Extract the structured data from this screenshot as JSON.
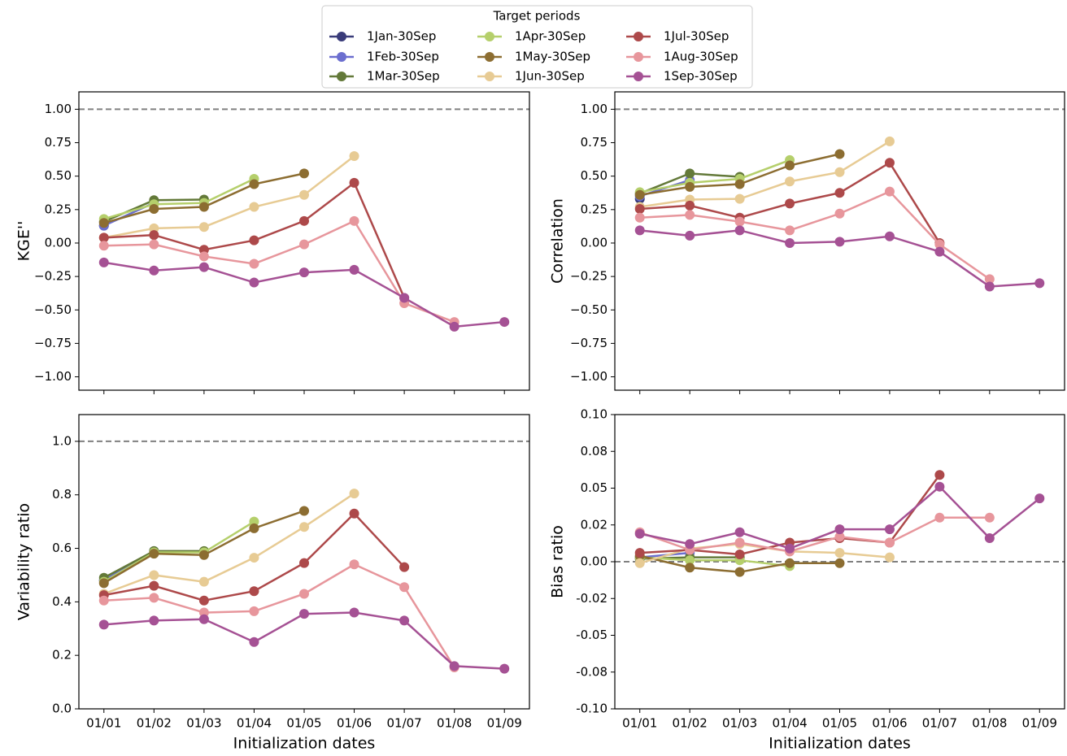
{
  "chart_data": [
    {
      "type": "line",
      "ylabel": "KGE''",
      "legend_title": "Target periods",
      "categories": [
        null,
        null,
        null,
        null,
        null,
        null,
        null,
        null,
        null
      ],
      "ylim": [
        -1.1,
        1.13
      ],
      "reference_line": 1,
      "yticks": [
        {
          "value": 1,
          "label": "1.00"
        },
        {
          "value": 0.75,
          "label": "0.75"
        },
        {
          "value": 0.5,
          "label": "0.50"
        },
        {
          "value": 0.25,
          "label": "0.25"
        },
        {
          "value": 0,
          "label": "0.00"
        },
        {
          "value": -0.25,
          "label": "−0.25"
        },
        {
          "value": -0.5,
          "label": "−0.50"
        },
        {
          "value": -0.75,
          "label": "−0.75"
        },
        {
          "value": -1,
          "label": "−1.00"
        }
      ],
      "series": [
        {
          "name": "1Jan-30Sep",
          "color": "#393b79",
          "values": [
            0.13,
            null,
            null,
            null,
            null,
            null,
            null,
            null,
            null
          ]
        },
        {
          "name": "1Feb-30Sep",
          "color": "#6b6ecf",
          "values": [
            0.13,
            0.3,
            null,
            null,
            null,
            null,
            null,
            null,
            null
          ]
        },
        {
          "name": "1Mar-30Sep",
          "color": "#637939",
          "values": [
            0.16,
            0.32,
            0.325,
            null,
            null,
            null,
            null,
            null,
            null
          ]
        },
        {
          "name": "1Apr-30Sep",
          "color": "#b5cf6b",
          "values": [
            0.18,
            0.29,
            0.3,
            0.48,
            null,
            null,
            null,
            null,
            null
          ]
        },
        {
          "name": "1May-30Sep",
          "color": "#8c6d31",
          "values": [
            0.15,
            0.255,
            0.27,
            0.44,
            0.52,
            null,
            null,
            null,
            null
          ]
        },
        {
          "name": "1Jun-30Sep",
          "color": "#e7cb94",
          "values": [
            0.04,
            0.11,
            0.12,
            0.27,
            0.36,
            0.65,
            null,
            null,
            null
          ]
        },
        {
          "name": "1Jul-30Sep",
          "color": "#ad494a",
          "values": [
            0.04,
            0.06,
            -0.05,
            0.02,
            0.165,
            0.45,
            -0.41,
            null,
            null
          ]
        },
        {
          "name": "1Aug-30Sep",
          "color": "#e7969c",
          "values": [
            -0.02,
            -0.01,
            -0.1,
            -0.155,
            -0.01,
            0.165,
            -0.45,
            -0.59,
            null
          ]
        },
        {
          "name": "1Sep-30Sep",
          "color": "#a55194",
          "values": [
            -0.145,
            -0.205,
            -0.18,
            -0.295,
            -0.22,
            -0.2,
            -0.41,
            -0.625,
            -0.59
          ]
        }
      ]
    },
    {
      "type": "line",
      "ylabel": "Correlation",
      "categories": [
        null,
        null,
        null,
        null,
        null,
        null,
        null,
        null,
        null
      ],
      "ylim": [
        -1.1,
        1.13
      ],
      "reference_line": 1,
      "yticks": [
        {
          "value": 1,
          "label": "1.00"
        },
        {
          "value": 0.75,
          "label": "0.75"
        },
        {
          "value": 0.5,
          "label": "0.50"
        },
        {
          "value": 0.25,
          "label": "0.25"
        },
        {
          "value": 0,
          "label": "0.00"
        },
        {
          "value": -0.25,
          "label": "−0.25"
        },
        {
          "value": -0.5,
          "label": "−0.50"
        },
        {
          "value": -0.75,
          "label": "−0.75"
        },
        {
          "value": -1,
          "label": "−1.00"
        }
      ],
      "series": [
        {
          "values": [
            0.33,
            null,
            null,
            null,
            null,
            null,
            null,
            null,
            null
          ]
        },
        {
          "values": [
            0.35,
            0.47,
            null,
            null,
            null,
            null,
            null,
            null,
            null
          ]
        },
        {
          "values": [
            0.37,
            0.52,
            0.495,
            null,
            null,
            null,
            null,
            null,
            null
          ]
        },
        {
          "values": [
            0.38,
            0.45,
            0.48,
            0.62,
            null,
            null,
            null,
            null,
            null
          ]
        },
        {
          "values": [
            0.36,
            0.42,
            0.44,
            0.58,
            0.665,
            null,
            null,
            null,
            null
          ]
        },
        {
          "values": [
            0.27,
            0.325,
            0.33,
            0.46,
            0.53,
            0.76,
            null,
            null,
            null
          ]
        },
        {
          "values": [
            0.255,
            0.28,
            0.19,
            0.295,
            0.375,
            0.6,
            0.0,
            null,
            null
          ]
        },
        {
          "values": [
            0.19,
            0.21,
            0.16,
            0.095,
            0.22,
            0.385,
            -0.01,
            -0.27,
            null
          ]
        },
        {
          "values": [
            0.095,
            0.055,
            0.095,
            0.0,
            0.01,
            0.05,
            -0.065,
            -0.325,
            -0.3
          ]
        }
      ]
    },
    {
      "type": "line",
      "ylabel": "Variability ratio",
      "xlabel": "Initialization dates",
      "categories": [
        "01/01",
        "01/02",
        "01/03",
        "01/04",
        "01/05",
        "01/06",
        "01/07",
        "01/08",
        "01/09"
      ],
      "ylim": [
        0,
        1.1
      ],
      "reference_line": 1,
      "yticks": [
        {
          "value": 1,
          "label": "1.0"
        },
        {
          "value": 0.8,
          "label": "0.8"
        },
        {
          "value": 0.6,
          "label": "0.6"
        },
        {
          "value": 0.4,
          "label": "0.4"
        },
        {
          "value": 0.2,
          "label": "0.2"
        },
        {
          "value": 0,
          "label": "0.0"
        }
      ],
      "series": [
        {
          "values": [
            0.48,
            null,
            null,
            null,
            null,
            null,
            null,
            null,
            null
          ]
        },
        {
          "values": [
            0.48,
            0.59,
            null,
            null,
            null,
            null,
            null,
            null,
            null
          ]
        },
        {
          "values": [
            0.49,
            0.59,
            0.59,
            null,
            null,
            null,
            null,
            null,
            null
          ]
        },
        {
          "values": [
            0.475,
            0.585,
            0.585,
            0.7,
            null,
            null,
            null,
            null,
            null
          ]
        },
        {
          "values": [
            0.47,
            0.58,
            0.575,
            0.675,
            0.74,
            null,
            null,
            null,
            null
          ]
        },
        {
          "values": [
            0.43,
            0.5,
            0.475,
            0.565,
            0.68,
            0.805,
            null,
            null,
            null
          ]
        },
        {
          "values": [
            0.425,
            0.46,
            0.405,
            0.44,
            0.545,
            0.73,
            0.53,
            null,
            null
          ]
        },
        {
          "values": [
            0.405,
            0.415,
            0.36,
            0.365,
            0.43,
            0.54,
            0.455,
            0.155,
            null
          ]
        },
        {
          "values": [
            0.315,
            0.33,
            0.335,
            0.25,
            0.355,
            0.36,
            0.33,
            0.16,
            0.15
          ]
        }
      ]
    },
    {
      "type": "line",
      "ylabel": "Bias ratio",
      "xlabel": "Initialization dates",
      "categories": [
        "01/01",
        "01/02",
        "01/03",
        "01/04",
        "01/05",
        "01/06",
        "01/07",
        "01/08",
        "01/09"
      ],
      "ylim": [
        -0.1,
        0.1
      ],
      "reference_line": 0,
      "yticks": [
        {
          "value": 0.1,
          "label": "0.10"
        },
        {
          "value": 0.075,
          "label": "0.08"
        },
        {
          "value": 0.05,
          "label": "0.05"
        },
        {
          "value": 0.025,
          "label": "0.02"
        },
        {
          "value": 0,
          "label": "0.00"
        },
        {
          "value": -0.025,
          "label": "-0.02"
        },
        {
          "value": -0.05,
          "label": "-0.05"
        },
        {
          "value": -0.075,
          "label": "-0.08"
        },
        {
          "value": -0.1,
          "label": "-0.10"
        }
      ],
      "series": [
        {
          "values": [
            0.003,
            null,
            null,
            null,
            null,
            null,
            null,
            null,
            null
          ]
        },
        {
          "values": [
            0.003,
            0.006,
            null,
            null,
            null,
            null,
            null,
            null,
            null
          ]
        },
        {
          "values": [
            0.002,
            0.003,
            0.003,
            null,
            null,
            null,
            null,
            null,
            null
          ]
        },
        {
          "values": [
            0.003,
            0.001,
            0.001,
            -0.003,
            null,
            null,
            null,
            null,
            null
          ]
        },
        {
          "values": [
            0.004,
            -0.004,
            -0.007,
            -0.001,
            -0.001,
            null,
            null,
            null,
            null
          ]
        },
        {
          "values": [
            -0.001,
            0.009,
            0.012,
            0.007,
            0.006,
            0.003,
            null,
            null,
            null
          ]
        },
        {
          "values": [
            0.006,
            0.008,
            0.005,
            0.013,
            0.016,
            0.013,
            0.059,
            null,
            null
          ]
        },
        {
          "values": [
            0.02,
            0.008,
            0.013,
            0.007,
            0.017,
            0.013,
            0.03,
            0.03,
            null
          ]
        },
        {
          "values": [
            0.019,
            0.012,
            0.02,
            0.009,
            0.022,
            0.022,
            0.051,
            0.016,
            0.043
          ]
        }
      ]
    }
  ]
}
